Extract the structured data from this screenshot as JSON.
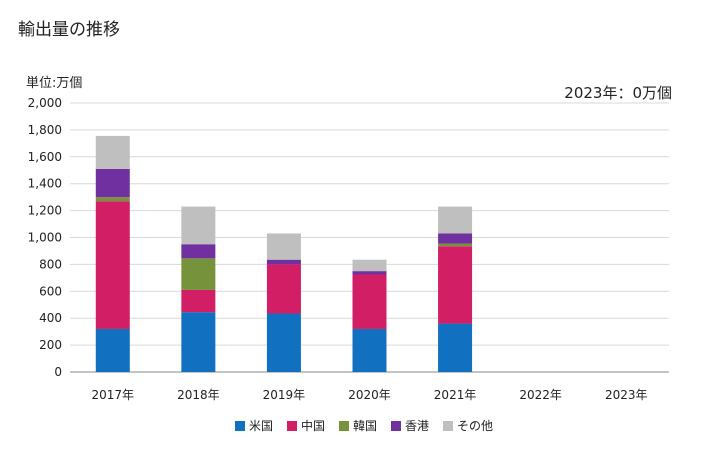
{
  "title": "輸出量の推移",
  "unit_label": "単位:万個",
  "note": "2023年：0万個",
  "chart_data": {
    "type": "bar",
    "stacked": true,
    "categories": [
      "2017年",
      "2018年",
      "2019年",
      "2020年",
      "2021年",
      "2022年",
      "2023年"
    ],
    "series": [
      {
        "name": "米国",
        "color": "#1170c0",
        "values": [
          320,
          445,
          435,
          320,
          360,
          0,
          0
        ]
      },
      {
        "name": "中国",
        "color": "#d21e64",
        "values": [
          950,
          165,
          365,
          405,
          575,
          0,
          0
        ]
      },
      {
        "name": "韓国",
        "color": "#76933c",
        "values": [
          30,
          235,
          0,
          0,
          20,
          0,
          0
        ]
      },
      {
        "name": "香港",
        "color": "#7030a0",
        "values": [
          210,
          105,
          35,
          25,
          75,
          0,
          0
        ]
      },
      {
        "name": "その他",
        "color": "#bfbfbf",
        "values": [
          245,
          280,
          195,
          85,
          200,
          0,
          0
        ]
      }
    ],
    "ylim": [
      0,
      2000
    ],
    "yticks": [
      0,
      200,
      400,
      600,
      800,
      1000,
      1200,
      1400,
      1600,
      1800,
      2000
    ],
    "ytick_labels": [
      "0",
      "200",
      "400",
      "600",
      "800",
      "1,000",
      "1,200",
      "1,400",
      "1,600",
      "1,800",
      "2,000"
    ],
    "grid": true,
    "legend_position": "bottom"
  }
}
